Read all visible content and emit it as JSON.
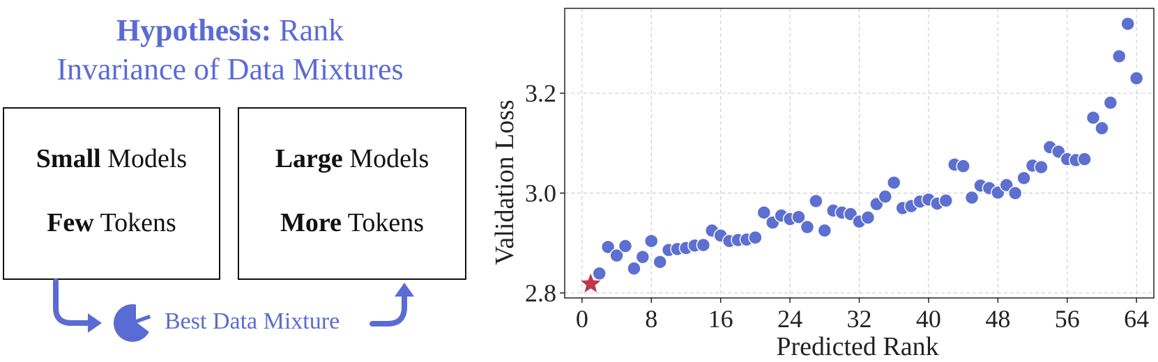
{
  "hypothesis": {
    "title_bold": "Hypothesis:",
    "title_rest_line1": "Rank",
    "title_line2": "Invariance of Data Mixtures"
  },
  "boxes": {
    "left": {
      "line1_bold": "Small",
      "line1_rest": "Models",
      "line2_bold": "Few",
      "line2_rest": "Tokens"
    },
    "right": {
      "line1_bold": "Large",
      "line1_rest": "Models",
      "line2_bold": "More",
      "line2_rest": "Tokens"
    }
  },
  "best_label": "Best Data Mixture",
  "icons": {
    "pie": "pie-chart-icon",
    "arrow_left": "curved-arrow-down-right-icon",
    "arrow_right": "curved-arrow-up-icon"
  },
  "colors": {
    "accent": "#5b6bd4",
    "point": "#5d6fd0",
    "star": "#c0364d"
  },
  "chart_data": {
    "type": "scatter",
    "xlabel": "Predicted Rank",
    "ylabel": "Validation Loss",
    "xlim": [
      -2,
      66
    ],
    "ylim": [
      2.79,
      3.37
    ],
    "xticks": [
      0,
      8,
      16,
      24,
      32,
      40,
      48,
      56,
      64
    ],
    "yticks": [
      2.8,
      3.0,
      3.2
    ],
    "ytick_labels": [
      "2.8",
      "3.0",
      "3.2"
    ],
    "grid": true,
    "best": {
      "x": 1,
      "y": 2.818
    },
    "points": [
      [
        2,
        2.839
      ],
      [
        3,
        2.892
      ],
      [
        4,
        2.875
      ],
      [
        5,
        2.894
      ],
      [
        6,
        2.849
      ],
      [
        7,
        2.872
      ],
      [
        8,
        2.904
      ],
      [
        9,
        2.862
      ],
      [
        10,
        2.886
      ],
      [
        11,
        2.888
      ],
      [
        12,
        2.89
      ],
      [
        13,
        2.895
      ],
      [
        14,
        2.896
      ],
      [
        15,
        2.925
      ],
      [
        16,
        2.915
      ],
      [
        17,
        2.904
      ],
      [
        18,
        2.906
      ],
      [
        19,
        2.907
      ],
      [
        20,
        2.911
      ],
      [
        21,
        2.961
      ],
      [
        22,
        2.941
      ],
      [
        23,
        2.955
      ],
      [
        24,
        2.948
      ],
      [
        25,
        2.952
      ],
      [
        26,
        2.932
      ],
      [
        27,
        2.984
      ],
      [
        28,
        2.925
      ],
      [
        29,
        2.965
      ],
      [
        30,
        2.961
      ],
      [
        31,
        2.958
      ],
      [
        32,
        2.943
      ],
      [
        33,
        2.951
      ],
      [
        34,
        2.978
      ],
      [
        35,
        2.993
      ],
      [
        36,
        3.021
      ],
      [
        37,
        2.97
      ],
      [
        38,
        2.974
      ],
      [
        39,
        2.983
      ],
      [
        40,
        2.987
      ],
      [
        41,
        2.979
      ],
      [
        42,
        2.985
      ],
      [
        43,
        3.057
      ],
      [
        44,
        3.054
      ],
      [
        45,
        2.991
      ],
      [
        46,
        3.015
      ],
      [
        47,
        3.01
      ],
      [
        48,
        3.001
      ],
      [
        49,
        3.016
      ],
      [
        50,
        3.0
      ],
      [
        51,
        3.03
      ],
      [
        52,
        3.055
      ],
      [
        53,
        3.052
      ],
      [
        54,
        3.092
      ],
      [
        55,
        3.083
      ],
      [
        56,
        3.068
      ],
      [
        57,
        3.066
      ],
      [
        58,
        3.068
      ],
      [
        59,
        3.151
      ],
      [
        60,
        3.13
      ],
      [
        61,
        3.181
      ],
      [
        62,
        3.274
      ],
      [
        63,
        3.339
      ],
      [
        64,
        3.23
      ]
    ]
  }
}
